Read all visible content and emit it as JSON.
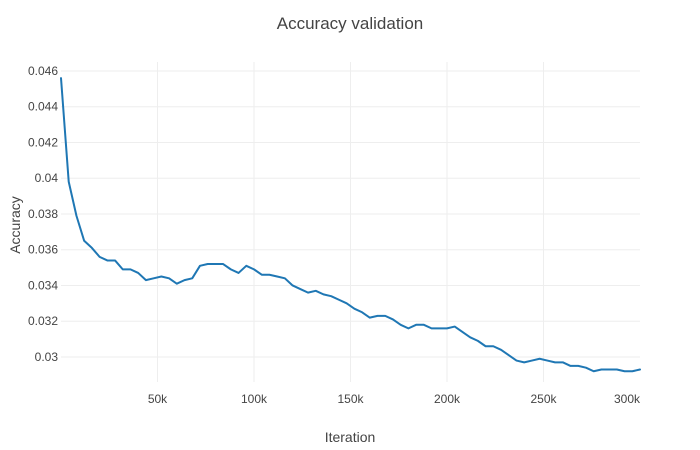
{
  "chart_data": {
    "type": "line",
    "title": "Accuracy validation",
    "xlabel": "Iteration",
    "ylabel": "Accuracy",
    "xlim": [
      0,
      300000
    ],
    "ylim": [
      0.0286,
      0.0465
    ],
    "grid": true,
    "legend": "none",
    "x_ticks": [
      {
        "value": 50000,
        "label": "50k"
      },
      {
        "value": 100000,
        "label": "100k"
      },
      {
        "value": 150000,
        "label": "150k"
      },
      {
        "value": 200000,
        "label": "200k"
      },
      {
        "value": 250000,
        "label": "250k"
      },
      {
        "value": 300000,
        "label": "300k"
      }
    ],
    "y_ticks": [
      {
        "value": 0.03,
        "label": "0.03"
      },
      {
        "value": 0.032,
        "label": "0.032"
      },
      {
        "value": 0.034,
        "label": "0.034"
      },
      {
        "value": 0.036,
        "label": "0.036"
      },
      {
        "value": 0.038,
        "label": "0.038"
      },
      {
        "value": 0.04,
        "label": "0.04"
      },
      {
        "value": 0.042,
        "label": "0.042"
      },
      {
        "value": 0.044,
        "label": "0.044"
      },
      {
        "value": 0.046,
        "label": "0.046"
      }
    ],
    "series": [
      {
        "color": "#1f77b4",
        "x": [
          0,
          4000,
          8000,
          12000,
          16000,
          20000,
          24000,
          28000,
          32000,
          36000,
          40000,
          44000,
          48000,
          52000,
          56000,
          60000,
          64000,
          68000,
          72000,
          76000,
          80000,
          84000,
          88000,
          92000,
          96000,
          100000,
          104000,
          108000,
          112000,
          116000,
          120000,
          124000,
          128000,
          132000,
          136000,
          140000,
          144000,
          148000,
          152000,
          156000,
          160000,
          164000,
          168000,
          172000,
          176000,
          180000,
          184000,
          188000,
          192000,
          196000,
          200000,
          204000,
          208000,
          212000,
          216000,
          220000,
          224000,
          228000,
          232000,
          236000,
          240000,
          244000,
          248000,
          252000,
          256000,
          260000,
          264000,
          268000,
          272000,
          276000,
          280000,
          284000,
          288000,
          292000,
          296000,
          300000
        ],
        "y": [
          0.0456,
          0.0398,
          0.0379,
          0.0365,
          0.0361,
          0.0356,
          0.0354,
          0.0354,
          0.0349,
          0.0349,
          0.0347,
          0.0343,
          0.0344,
          0.0345,
          0.0344,
          0.0341,
          0.0343,
          0.0344,
          0.0351,
          0.0352,
          0.0352,
          0.0352,
          0.0349,
          0.0347,
          0.0351,
          0.0349,
          0.0346,
          0.0346,
          0.0345,
          0.0344,
          0.034,
          0.0338,
          0.0336,
          0.0337,
          0.0335,
          0.0334,
          0.0332,
          0.033,
          0.0327,
          0.0325,
          0.0322,
          0.0323,
          0.0323,
          0.0321,
          0.0318,
          0.0316,
          0.0318,
          0.0318,
          0.0316,
          0.0316,
          0.0316,
          0.0317,
          0.0314,
          0.0311,
          0.0309,
          0.0306,
          0.0306,
          0.0304,
          0.0301,
          0.0298,
          0.0297,
          0.0298,
          0.0299,
          0.0298,
          0.0297,
          0.0297,
          0.0295,
          0.0295,
          0.0294,
          0.0292,
          0.0293,
          0.0293,
          0.0293,
          0.0292,
          0.0292,
          0.0293
        ]
      }
    ]
  }
}
